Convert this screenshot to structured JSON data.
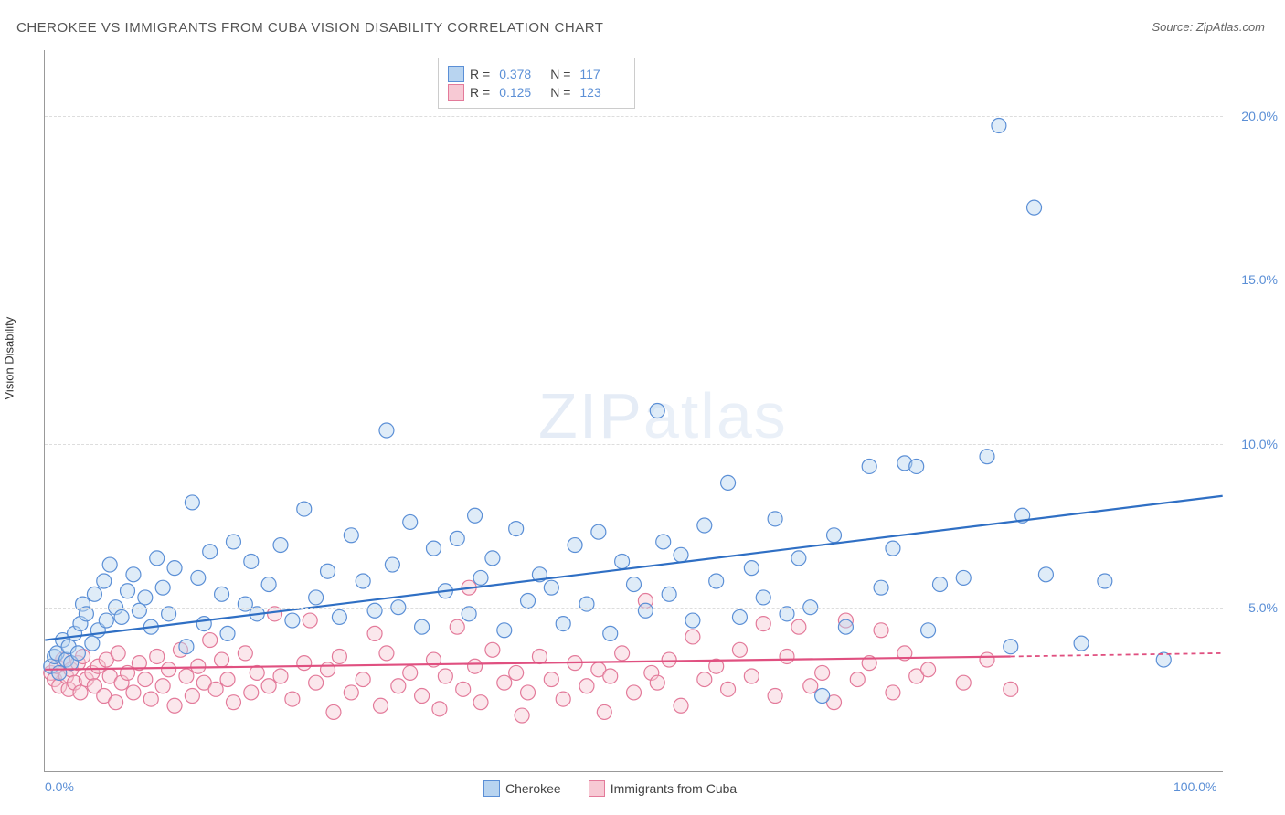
{
  "title": "CHEROKEE VS IMMIGRANTS FROM CUBA VISION DISABILITY CORRELATION CHART",
  "source_label": "Source: ZipAtlas.com",
  "ylabel": "Vision Disability",
  "watermark": "ZIPatlas",
  "chart": {
    "type": "scatter",
    "xlim": [
      0,
      100
    ],
    "ylim": [
      0,
      22
    ],
    "xticks": [
      {
        "v": 0,
        "l": "0.0%"
      },
      {
        "v": 100,
        "l": "100.0%"
      }
    ],
    "yticks": [
      {
        "v": 5,
        "l": "5.0%"
      },
      {
        "v": 10,
        "l": "10.0%"
      },
      {
        "v": 15,
        "l": "15.0%"
      },
      {
        "v": 20,
        "l": "20.0%"
      }
    ],
    "grid_color": "#dddddd",
    "axis_color": "#999999",
    "background_color": "#ffffff",
    "marker_radius": 8,
    "series": [
      {
        "name": "Cherokee",
        "fill": "#b8d4f0",
        "stroke": "#5b8fd6",
        "R": "0.378",
        "N": "117",
        "trend": {
          "x1": 0,
          "y1": 4.0,
          "x2": 100,
          "y2": 8.4,
          "color": "#2f6fc4"
        },
        "points": [
          [
            0.5,
            3.2
          ],
          [
            0.8,
            3.5
          ],
          [
            1,
            3.6
          ],
          [
            1.2,
            3.0
          ],
          [
            1.5,
            4.0
          ],
          [
            1.8,
            3.4
          ],
          [
            2,
            3.8
          ],
          [
            2.2,
            3.3
          ],
          [
            2.5,
            4.2
          ],
          [
            2.8,
            3.6
          ],
          [
            3,
            4.5
          ],
          [
            3.2,
            5.1
          ],
          [
            3.5,
            4.8
          ],
          [
            4,
            3.9
          ],
          [
            4.2,
            5.4
          ],
          [
            4.5,
            4.3
          ],
          [
            5,
            5.8
          ],
          [
            5.2,
            4.6
          ],
          [
            5.5,
            6.3
          ],
          [
            6,
            5.0
          ],
          [
            6.5,
            4.7
          ],
          [
            7,
            5.5
          ],
          [
            7.5,
            6.0
          ],
          [
            8,
            4.9
          ],
          [
            8.5,
            5.3
          ],
          [
            9,
            4.4
          ],
          [
            9.5,
            6.5
          ],
          [
            10,
            5.6
          ],
          [
            10.5,
            4.8
          ],
          [
            11,
            6.2
          ],
          [
            12,
            3.8
          ],
          [
            12.5,
            8.2
          ],
          [
            13,
            5.9
          ],
          [
            13.5,
            4.5
          ],
          [
            14,
            6.7
          ],
          [
            15,
            5.4
          ],
          [
            15.5,
            4.2
          ],
          [
            16,
            7.0
          ],
          [
            17,
            5.1
          ],
          [
            17.5,
            6.4
          ],
          [
            18,
            4.8
          ],
          [
            19,
            5.7
          ],
          [
            20,
            6.9
          ],
          [
            21,
            4.6
          ],
          [
            22,
            8.0
          ],
          [
            23,
            5.3
          ],
          [
            24,
            6.1
          ],
          [
            25,
            4.7
          ],
          [
            26,
            7.2
          ],
          [
            27,
            5.8
          ],
          [
            28,
            4.9
          ],
          [
            29,
            10.4
          ],
          [
            29.5,
            6.3
          ],
          [
            30,
            5.0
          ],
          [
            31,
            7.6
          ],
          [
            32,
            4.4
          ],
          [
            33,
            6.8
          ],
          [
            34,
            5.5
          ],
          [
            35,
            7.1
          ],
          [
            36,
            4.8
          ],
          [
            36.5,
            7.8
          ],
          [
            37,
            5.9
          ],
          [
            38,
            6.5
          ],
          [
            39,
            4.3
          ],
          [
            40,
            7.4
          ],
          [
            41,
            5.2
          ],
          [
            42,
            6.0
          ],
          [
            43,
            5.6
          ],
          [
            44,
            4.5
          ],
          [
            45,
            6.9
          ],
          [
            46,
            5.1
          ],
          [
            47,
            7.3
          ],
          [
            48,
            4.2
          ],
          [
            49,
            6.4
          ],
          [
            50,
            5.7
          ],
          [
            51,
            4.9
          ],
          [
            52,
            11.0
          ],
          [
            52.5,
            7.0
          ],
          [
            53,
            5.4
          ],
          [
            54,
            6.6
          ],
          [
            55,
            4.6
          ],
          [
            56,
            7.5
          ],
          [
            57,
            5.8
          ],
          [
            58,
            8.8
          ],
          [
            59,
            4.7
          ],
          [
            60,
            6.2
          ],
          [
            61,
            5.3
          ],
          [
            62,
            7.7
          ],
          [
            63,
            4.8
          ],
          [
            64,
            6.5
          ],
          [
            65,
            5.0
          ],
          [
            66,
            2.3
          ],
          [
            67,
            7.2
          ],
          [
            68,
            4.4
          ],
          [
            70,
            9.3
          ],
          [
            71,
            5.6
          ],
          [
            72,
            6.8
          ],
          [
            73,
            9.4
          ],
          [
            74,
            9.3
          ],
          [
            75,
            4.3
          ],
          [
            76,
            5.7
          ],
          [
            78,
            5.9
          ],
          [
            80,
            9.6
          ],
          [
            81,
            19.7
          ],
          [
            82,
            3.8
          ],
          [
            83,
            7.8
          ],
          [
            84,
            17.2
          ],
          [
            85,
            6.0
          ],
          [
            88,
            3.9
          ],
          [
            90,
            5.8
          ],
          [
            95,
            3.4
          ]
        ]
      },
      {
        "name": "Immigrants from Cuba",
        "fill": "#f7c9d4",
        "stroke": "#e37a9a",
        "R": "0.125",
        "N": "123",
        "trend_solid": {
          "x1": 0,
          "y1": 3.1,
          "x2": 82,
          "y2": 3.5,
          "color": "#e05080"
        },
        "trend_dash": {
          "x1": 82,
          "y1": 3.5,
          "x2": 100,
          "y2": 3.6,
          "color": "#e05080"
        },
        "points": [
          [
            0.5,
            3.0
          ],
          [
            0.8,
            2.8
          ],
          [
            1,
            3.2
          ],
          [
            1.2,
            2.6
          ],
          [
            1.5,
            3.4
          ],
          [
            1.8,
            2.9
          ],
          [
            2,
            2.5
          ],
          [
            2.2,
            3.1
          ],
          [
            2.5,
            2.7
          ],
          [
            2.8,
            3.3
          ],
          [
            3,
            2.4
          ],
          [
            3.2,
            3.5
          ],
          [
            3.5,
            2.8
          ],
          [
            4,
            3.0
          ],
          [
            4.2,
            2.6
          ],
          [
            4.5,
            3.2
          ],
          [
            5,
            2.3
          ],
          [
            5.2,
            3.4
          ],
          [
            5.5,
            2.9
          ],
          [
            6,
            2.1
          ],
          [
            6.2,
            3.6
          ],
          [
            6.5,
            2.7
          ],
          [
            7,
            3.0
          ],
          [
            7.5,
            2.4
          ],
          [
            8,
            3.3
          ],
          [
            8.5,
            2.8
          ],
          [
            9,
            2.2
          ],
          [
            9.5,
            3.5
          ],
          [
            10,
            2.6
          ],
          [
            10.5,
            3.1
          ],
          [
            11,
            2.0
          ],
          [
            11.5,
            3.7
          ],
          [
            12,
            2.9
          ],
          [
            12.5,
            2.3
          ],
          [
            13,
            3.2
          ],
          [
            13.5,
            2.7
          ],
          [
            14,
            4.0
          ],
          [
            14.5,
            2.5
          ],
          [
            15,
            3.4
          ],
          [
            15.5,
            2.8
          ],
          [
            16,
            2.1
          ],
          [
            17,
            3.6
          ],
          [
            17.5,
            2.4
          ],
          [
            18,
            3.0
          ],
          [
            19,
            2.6
          ],
          [
            19.5,
            4.8
          ],
          [
            20,
            2.9
          ],
          [
            21,
            2.2
          ],
          [
            22,
            3.3
          ],
          [
            22.5,
            4.6
          ],
          [
            23,
            2.7
          ],
          [
            24,
            3.1
          ],
          [
            24.5,
            1.8
          ],
          [
            25,
            3.5
          ],
          [
            26,
            2.4
          ],
          [
            27,
            2.8
          ],
          [
            28,
            4.2
          ],
          [
            28.5,
            2.0
          ],
          [
            29,
            3.6
          ],
          [
            30,
            2.6
          ],
          [
            31,
            3.0
          ],
          [
            32,
            2.3
          ],
          [
            33,
            3.4
          ],
          [
            33.5,
            1.9
          ],
          [
            34,
            2.9
          ],
          [
            35,
            4.4
          ],
          [
            35.5,
            2.5
          ],
          [
            36,
            5.6
          ],
          [
            36.5,
            3.2
          ],
          [
            37,
            2.1
          ],
          [
            38,
            3.7
          ],
          [
            39,
            2.7
          ],
          [
            40,
            3.0
          ],
          [
            40.5,
            1.7
          ],
          [
            41,
            2.4
          ],
          [
            42,
            3.5
          ],
          [
            43,
            2.8
          ],
          [
            44,
            2.2
          ],
          [
            45,
            3.3
          ],
          [
            46,
            2.6
          ],
          [
            47,
            3.1
          ],
          [
            47.5,
            1.8
          ],
          [
            48,
            2.9
          ],
          [
            49,
            3.6
          ],
          [
            50,
            2.4
          ],
          [
            51,
            5.2
          ],
          [
            51.5,
            3.0
          ],
          [
            52,
            2.7
          ],
          [
            53,
            3.4
          ],
          [
            54,
            2.0
          ],
          [
            55,
            4.1
          ],
          [
            56,
            2.8
          ],
          [
            57,
            3.2
          ],
          [
            58,
            2.5
          ],
          [
            59,
            3.7
          ],
          [
            60,
            2.9
          ],
          [
            61,
            4.5
          ],
          [
            62,
            2.3
          ],
          [
            63,
            3.5
          ],
          [
            64,
            4.4
          ],
          [
            65,
            2.6
          ],
          [
            66,
            3.0
          ],
          [
            67,
            2.1
          ],
          [
            68,
            4.6
          ],
          [
            69,
            2.8
          ],
          [
            70,
            3.3
          ],
          [
            71,
            4.3
          ],
          [
            72,
            2.4
          ],
          [
            73,
            3.6
          ],
          [
            74,
            2.9
          ],
          [
            75,
            3.1
          ],
          [
            78,
            2.7
          ],
          [
            80,
            3.4
          ],
          [
            82,
            2.5
          ]
        ]
      }
    ]
  }
}
